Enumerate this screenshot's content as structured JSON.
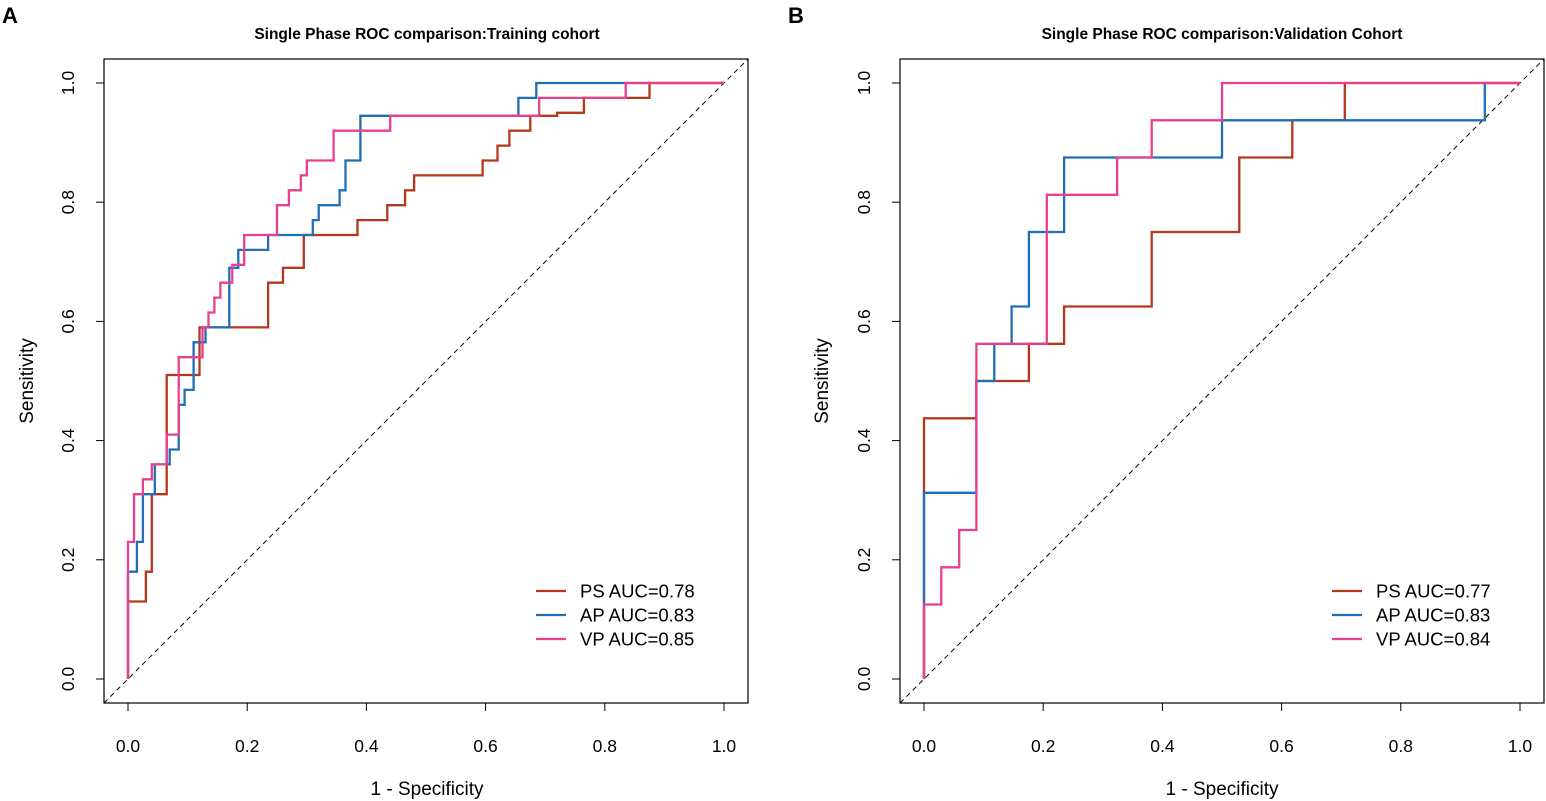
{
  "chart_data": [
    {
      "panel": "A",
      "type": "line",
      "title": "Single Phase ROC comparison:Training cohort",
      "xlabel": "1 - Specificity",
      "ylabel": "Sensitivity",
      "xlim": [
        0,
        1
      ],
      "ylim": [
        0,
        1
      ],
      "xticks": [
        "0.0",
        "0.2",
        "0.4",
        "0.6",
        "0.8",
        "1.0"
      ],
      "yticks": [
        "0.0",
        "0.2",
        "0.4",
        "0.6",
        "0.8",
        "1.0"
      ],
      "legend_position": "bottom-right",
      "series": [
        {
          "name": "PS AUC=0.78",
          "color": "#b5381c",
          "points": [
            [
              0,
              0
            ],
            [
              0,
              0.13
            ],
            [
              0.03,
              0.13
            ],
            [
              0.03,
              0.18
            ],
            [
              0.04,
              0.18
            ],
            [
              0.04,
              0.31
            ],
            [
              0.065,
              0.31
            ],
            [
              0.065,
              0.51
            ],
            [
              0.12,
              0.51
            ],
            [
              0.12,
              0.59
            ],
            [
              0.235,
              0.59
            ],
            [
              0.235,
              0.665
            ],
            [
              0.26,
              0.665
            ],
            [
              0.26,
              0.69
            ],
            [
              0.295,
              0.69
            ],
            [
              0.295,
              0.745
            ],
            [
              0.385,
              0.745
            ],
            [
              0.385,
              0.77
            ],
            [
              0.435,
              0.77
            ],
            [
              0.435,
              0.795
            ],
            [
              0.465,
              0.795
            ],
            [
              0.465,
              0.82
            ],
            [
              0.48,
              0.82
            ],
            [
              0.48,
              0.845
            ],
            [
              0.595,
              0.845
            ],
            [
              0.595,
              0.87
            ],
            [
              0.62,
              0.87
            ],
            [
              0.62,
              0.895
            ],
            [
              0.64,
              0.895
            ],
            [
              0.64,
              0.92
            ],
            [
              0.675,
              0.92
            ],
            [
              0.675,
              0.945
            ],
            [
              0.72,
              0.945
            ],
            [
              0.72,
              0.95
            ],
            [
              0.765,
              0.95
            ],
            [
              0.765,
              0.975
            ],
            [
              0.875,
              0.975
            ],
            [
              0.875,
              1.0
            ],
            [
              1,
              1
            ]
          ]
        },
        {
          "name": "AP AUC=0.83",
          "color": "#1f6fb4",
          "points": [
            [
              0,
              0
            ],
            [
              0,
              0.18
            ],
            [
              0.015,
              0.18
            ],
            [
              0.015,
              0.23
            ],
            [
              0.025,
              0.23
            ],
            [
              0.025,
              0.31
            ],
            [
              0.045,
              0.31
            ],
            [
              0.045,
              0.36
            ],
            [
              0.07,
              0.36
            ],
            [
              0.07,
              0.385
            ],
            [
              0.085,
              0.385
            ],
            [
              0.085,
              0.46
            ],
            [
              0.095,
              0.46
            ],
            [
              0.095,
              0.485
            ],
            [
              0.11,
              0.485
            ],
            [
              0.11,
              0.565
            ],
            [
              0.13,
              0.565
            ],
            [
              0.13,
              0.59
            ],
            [
              0.17,
              0.59
            ],
            [
              0.17,
              0.69
            ],
            [
              0.185,
              0.69
            ],
            [
              0.185,
              0.72
            ],
            [
              0.235,
              0.72
            ],
            [
              0.235,
              0.745
            ],
            [
              0.31,
              0.745
            ],
            [
              0.31,
              0.77
            ],
            [
              0.32,
              0.77
            ],
            [
              0.32,
              0.795
            ],
            [
              0.355,
              0.795
            ],
            [
              0.355,
              0.82
            ],
            [
              0.365,
              0.82
            ],
            [
              0.365,
              0.87
            ],
            [
              0.39,
              0.87
            ],
            [
              0.39,
              0.945
            ],
            [
              0.655,
              0.945
            ],
            [
              0.655,
              0.975
            ],
            [
              0.685,
              0.975
            ],
            [
              0.685,
              1.0
            ],
            [
              1,
              1
            ]
          ]
        },
        {
          "name": "VP AUC=0.85",
          "color": "#e8408f",
          "points": [
            [
              0,
              0
            ],
            [
              0,
              0.23
            ],
            [
              0.01,
              0.23
            ],
            [
              0.01,
              0.31
            ],
            [
              0.025,
              0.31
            ],
            [
              0.025,
              0.335
            ],
            [
              0.04,
              0.335
            ],
            [
              0.04,
              0.36
            ],
            [
              0.065,
              0.36
            ],
            [
              0.065,
              0.41
            ],
            [
              0.085,
              0.41
            ],
            [
              0.085,
              0.54
            ],
            [
              0.125,
              0.54
            ],
            [
              0.125,
              0.59
            ],
            [
              0.135,
              0.59
            ],
            [
              0.135,
              0.615
            ],
            [
              0.145,
              0.615
            ],
            [
              0.145,
              0.64
            ],
            [
              0.155,
              0.64
            ],
            [
              0.155,
              0.665
            ],
            [
              0.175,
              0.665
            ],
            [
              0.175,
              0.695
            ],
            [
              0.195,
              0.695
            ],
            [
              0.195,
              0.745
            ],
            [
              0.25,
              0.745
            ],
            [
              0.25,
              0.795
            ],
            [
              0.27,
              0.795
            ],
            [
              0.27,
              0.82
            ],
            [
              0.29,
              0.82
            ],
            [
              0.29,
              0.845
            ],
            [
              0.3,
              0.845
            ],
            [
              0.3,
              0.87
            ],
            [
              0.345,
              0.87
            ],
            [
              0.345,
              0.92
            ],
            [
              0.44,
              0.92
            ],
            [
              0.44,
              0.945
            ],
            [
              0.69,
              0.945
            ],
            [
              0.69,
              0.975
            ],
            [
              0.835,
              0.975
            ],
            [
              0.835,
              1.0
            ],
            [
              1,
              1
            ]
          ]
        }
      ]
    },
    {
      "panel": "B",
      "type": "line",
      "title": "Single Phase ROC comparison:Validation Cohort",
      "xlabel": "1 - Specificity",
      "ylabel": "Sensitivity",
      "xlim": [
        0,
        1
      ],
      "ylim": [
        0,
        1
      ],
      "xticks": [
        "0.0",
        "0.2",
        "0.4",
        "0.6",
        "0.8",
        "1.0"
      ],
      "yticks": [
        "0.0",
        "0.2",
        "0.4",
        "0.6",
        "0.8",
        "1.0"
      ],
      "legend_position": "bottom-right",
      "series": [
        {
          "name": "PS AUC=0.77",
          "color": "#b5381c",
          "points": [
            [
              0,
              0
            ],
            [
              0,
              0.4375
            ],
            [
              0.088,
              0.4375
            ],
            [
              0.088,
              0.5
            ],
            [
              0.176,
              0.5
            ],
            [
              0.176,
              0.5625
            ],
            [
              0.235,
              0.5625
            ],
            [
              0.235,
              0.625
            ],
            [
              0.382,
              0.625
            ],
            [
              0.382,
              0.75
            ],
            [
              0.529,
              0.75
            ],
            [
              0.529,
              0.875
            ],
            [
              0.618,
              0.875
            ],
            [
              0.618,
              0.9375
            ],
            [
              0.706,
              0.9375
            ],
            [
              0.706,
              1.0
            ],
            [
              1,
              1
            ]
          ]
        },
        {
          "name": "AP AUC=0.83",
          "color": "#1f6fb4",
          "points": [
            [
              0,
              0
            ],
            [
              0,
              0.125
            ],
            [
              0,
              0.3125
            ],
            [
              0.088,
              0.3125
            ],
            [
              0.088,
              0.5
            ],
            [
              0.118,
              0.5
            ],
            [
              0.118,
              0.5625
            ],
            [
              0.147,
              0.5625
            ],
            [
              0.147,
              0.625
            ],
            [
              0.176,
              0.625
            ],
            [
              0.176,
              0.75
            ],
            [
              0.235,
              0.75
            ],
            [
              0.235,
              0.875
            ],
            [
              0.5,
              0.875
            ],
            [
              0.5,
              0.9375
            ],
            [
              0.941,
              0.9375
            ],
            [
              0.941,
              1.0
            ],
            [
              1,
              1
            ]
          ]
        },
        {
          "name": "VP AUC=0.84",
          "color": "#e8408f",
          "points": [
            [
              0,
              0
            ],
            [
              0,
              0.125
            ],
            [
              0.029,
              0.125
            ],
            [
              0.029,
              0.1875
            ],
            [
              0.059,
              0.1875
            ],
            [
              0.059,
              0.25
            ],
            [
              0.088,
              0.25
            ],
            [
              0.088,
              0.5625
            ],
            [
              0.206,
              0.5625
            ],
            [
              0.206,
              0.8125
            ],
            [
              0.324,
              0.8125
            ],
            [
              0.324,
              0.875
            ],
            [
              0.382,
              0.875
            ],
            [
              0.382,
              0.9375
            ],
            [
              0.5,
              0.9375
            ],
            [
              0.5,
              1.0
            ],
            [
              1,
              1
            ]
          ]
        }
      ]
    }
  ]
}
